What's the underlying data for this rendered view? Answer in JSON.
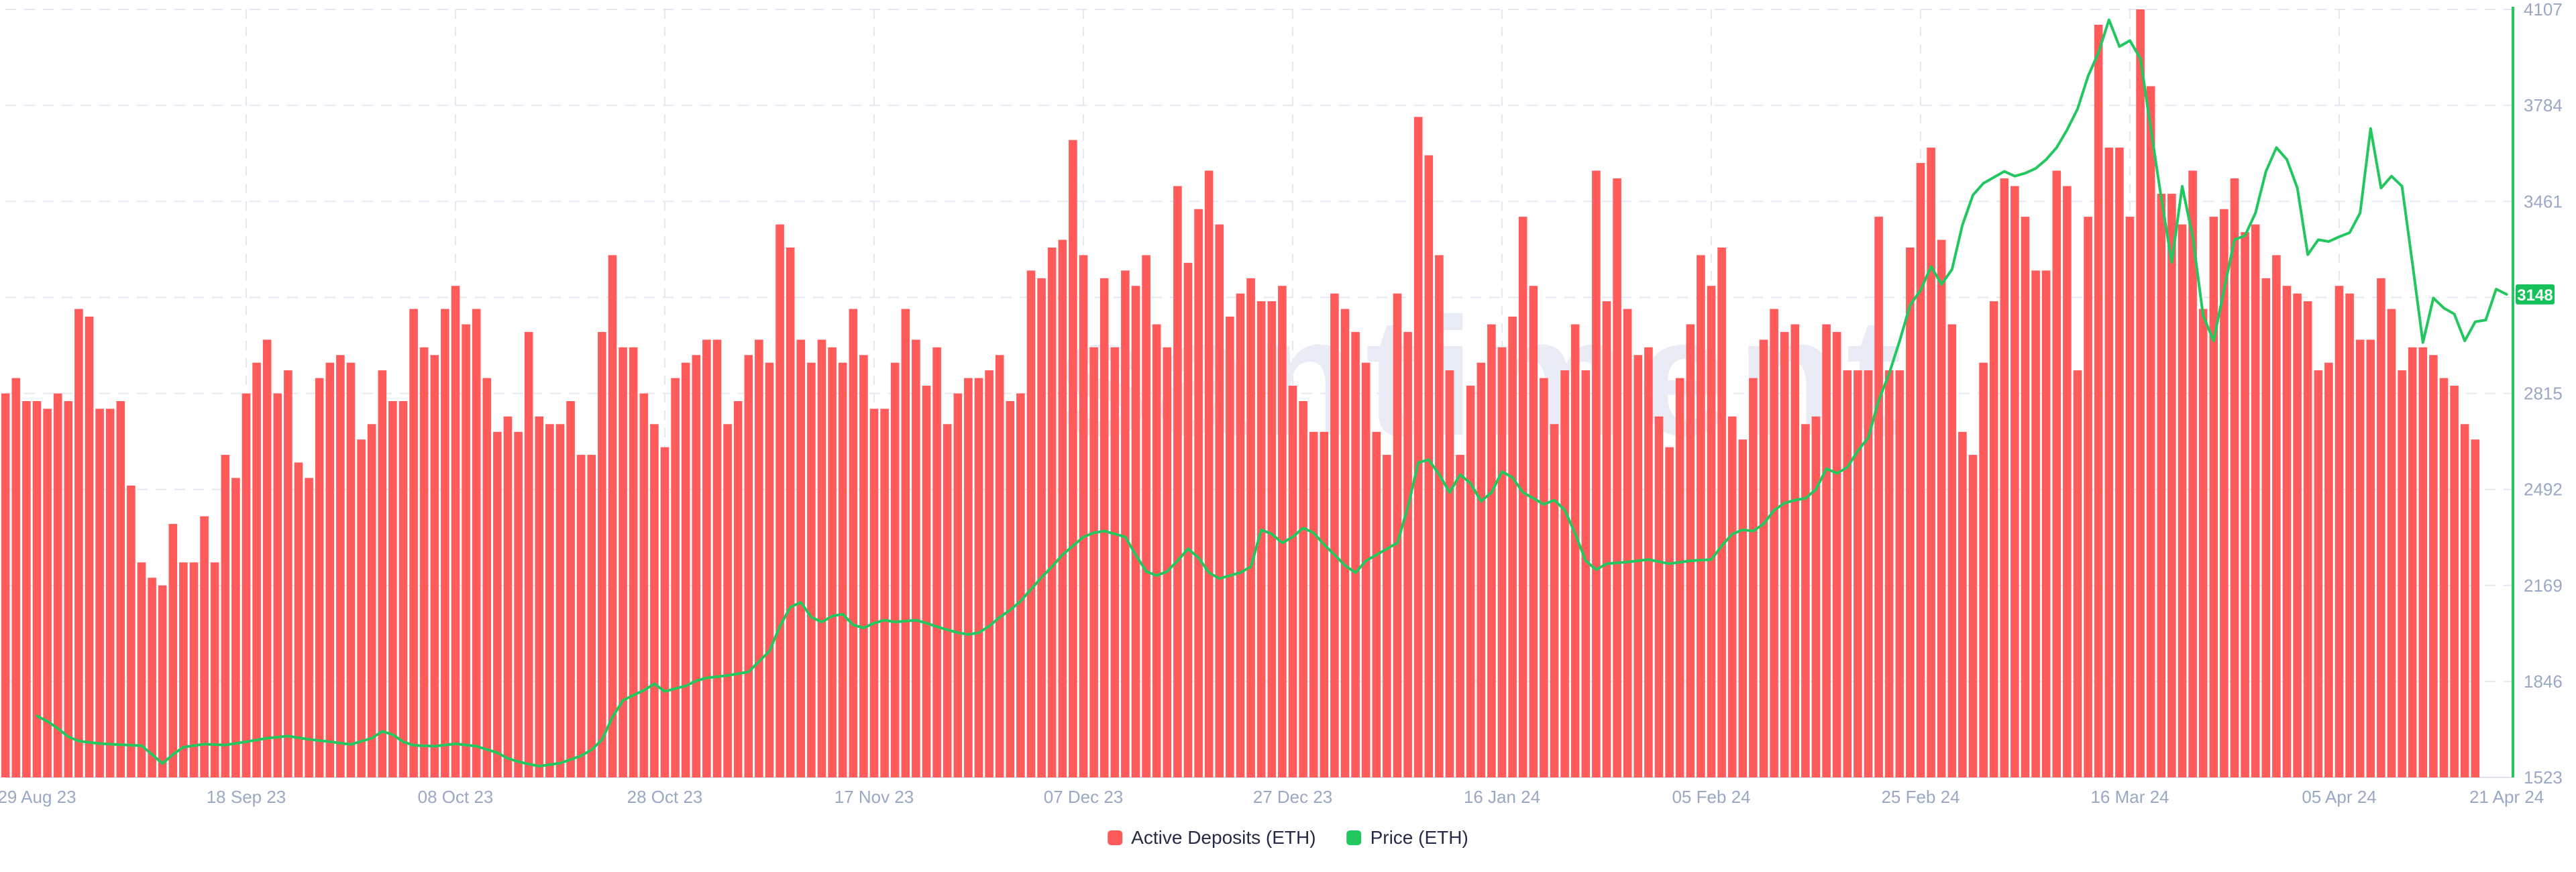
{
  "chart_data": {
    "type": "bar+line dual-axis time series",
    "watermark": "santiment",
    "x_axis": {
      "start_date": "29 Aug 23",
      "end_date": "21 Apr 24",
      "tick_labels": [
        "29 Aug 23",
        "18 Sep 23",
        "08 Oct 23",
        "28 Oct 23",
        "17 Nov 23",
        "07 Dec 23",
        "27 Dec 23",
        "16 Jan 24",
        "05 Feb 24",
        "25 Feb 24",
        "16 Mar 24",
        "05 Apr 24",
        "21 Apr 24"
      ],
      "tick_day_index": [
        0,
        20,
        40,
        60,
        80,
        100,
        120,
        140,
        160,
        180,
        200,
        220,
        236
      ]
    },
    "y_axis_price": {
      "side": "right",
      "min": 1523,
      "max": 4107,
      "ticks": [
        1523,
        1846,
        2169,
        2492,
        2815,
        3138,
        3461,
        3784,
        4107
      ],
      "hidden_tick": 3138,
      "last_price_badge": 3148
    },
    "y_axis_deposits": {
      "visible": false,
      "note": "bar axis not shown in chart; bar values are percent of plot height"
    },
    "grid": {
      "style": "dashed",
      "color": "#e5e8f2",
      "h_lines": [
        1846,
        2169,
        2492,
        2815,
        3138,
        3461,
        3784,
        4107
      ],
      "v_lines_day_index": [
        20,
        40,
        60,
        80,
        100,
        120,
        140,
        160,
        180,
        200,
        220
      ]
    },
    "series": [
      {
        "name": "Active Deposits (ETH)",
        "type": "bar",
        "color": "#ff5b5b",
        "unit": "% of plot height (source scale hidden)",
        "start_day_offset": -3,
        "values_pct": [
          50,
          52,
          49,
          49,
          48,
          50,
          49,
          61,
          60,
          48,
          48,
          49,
          38,
          28,
          26,
          25,
          33,
          28,
          28,
          34,
          28,
          42,
          39,
          50,
          54,
          57,
          50,
          53,
          41,
          39,
          52,
          54,
          55,
          54,
          44,
          46,
          53,
          49,
          49,
          61,
          56,
          55,
          61,
          64,
          59,
          61,
          52,
          45,
          47,
          45,
          58,
          47,
          46,
          46,
          49,
          42,
          42,
          58,
          68,
          56,
          56,
          50,
          46,
          43,
          52,
          54,
          55,
          57,
          57,
          46,
          49,
          55,
          57,
          54,
          72,
          69,
          57,
          54,
          57,
          56,
          54,
          61,
          55,
          48,
          48,
          54,
          61,
          57,
          51,
          56,
          46,
          50,
          52,
          52,
          53,
          55,
          49,
          50,
          66,
          65,
          69,
          70,
          83,
          68,
          56,
          65,
          56,
          66,
          64,
          68,
          59,
          56,
          77,
          67,
          74,
          79,
          72,
          60,
          63,
          65,
          62,
          62,
          64,
          51,
          49,
          45,
          45,
          63,
          61,
          58,
          54,
          45,
          42,
          63,
          58,
          86,
          81,
          68,
          53,
          42,
          51,
          54,
          59,
          56,
          60,
          73,
          64,
          52,
          46,
          53,
          59,
          53,
          79,
          62,
          78,
          61,
          55,
          56,
          47,
          43,
          52,
          59,
          68,
          64,
          69,
          47,
          44,
          52,
          57,
          61,
          58,
          59,
          46,
          47,
          59,
          58,
          53,
          53,
          53,
          73,
          53,
          53,
          69,
          80,
          82,
          70,
          59,
          45,
          42,
          54,
          62,
          78,
          77,
          73,
          66,
          66,
          79,
          77,
          53,
          73,
          98,
          82,
          82,
          73,
          100,
          90,
          76,
          76,
          72,
          79,
          61,
          73,
          74,
          78,
          71,
          72,
          65,
          68,
          64,
          63,
          62,
          53,
          54,
          64,
          63,
          57,
          57,
          65,
          61,
          53,
          56,
          56,
          55,
          52,
          51,
          46,
          44
        ]
      },
      {
        "name": "Price (ETH)",
        "type": "line",
        "color": "#22c75f",
        "points_day_price": [
          [
            0,
            1730
          ],
          [
            1,
            1712
          ],
          [
            2,
            1688
          ],
          [
            3,
            1660
          ],
          [
            4,
            1645
          ],
          [
            6,
            1637
          ],
          [
            8,
            1633
          ],
          [
            10,
            1630
          ],
          [
            11,
            1600
          ],
          [
            12,
            1570
          ],
          [
            13,
            1600
          ],
          [
            14,
            1625
          ],
          [
            16,
            1635
          ],
          [
            18,
            1632
          ],
          [
            20,
            1643
          ],
          [
            22,
            1655
          ],
          [
            24,
            1662
          ],
          [
            26,
            1651
          ],
          [
            28,
            1643
          ],
          [
            30,
            1634
          ],
          [
            32,
            1655
          ],
          [
            33,
            1678
          ],
          [
            34,
            1667
          ],
          [
            35,
            1643
          ],
          [
            36,
            1631
          ],
          [
            38,
            1628
          ],
          [
            40,
            1636
          ],
          [
            42,
            1628
          ],
          [
            44,
            1606
          ],
          [
            45,
            1587
          ],
          [
            46,
            1576
          ],
          [
            47,
            1568
          ],
          [
            48,
            1561
          ],
          [
            50,
            1571
          ],
          [
            52,
            1596
          ],
          [
            53,
            1616
          ],
          [
            54,
            1650
          ],
          [
            55,
            1726
          ],
          [
            56,
            1782
          ],
          [
            57,
            1800
          ],
          [
            58,
            1816
          ],
          [
            59,
            1838
          ],
          [
            60,
            1812
          ],
          [
            61,
            1822
          ],
          [
            62,
            1831
          ],
          [
            63,
            1848
          ],
          [
            64,
            1858
          ],
          [
            66,
            1866
          ],
          [
            68,
            1878
          ],
          [
            70,
            1948
          ],
          [
            71,
            2032
          ],
          [
            72,
            2096
          ],
          [
            73,
            2112
          ],
          [
            74,
            2062
          ],
          [
            75,
            2046
          ],
          [
            76,
            2066
          ],
          [
            77,
            2072
          ],
          [
            78,
            2036
          ],
          [
            79,
            2026
          ],
          [
            80,
            2042
          ],
          [
            81,
            2052
          ],
          [
            82,
            2046
          ],
          [
            84,
            2052
          ],
          [
            85,
            2042
          ],
          [
            86,
            2030
          ],
          [
            87,
            2020
          ],
          [
            88,
            2010
          ],
          [
            89,
            2004
          ],
          [
            90,
            2010
          ],
          [
            91,
            2032
          ],
          [
            92,
            2062
          ],
          [
            93,
            2086
          ],
          [
            94,
            2116
          ],
          [
            95,
            2156
          ],
          [
            96,
            2196
          ],
          [
            97,
            2232
          ],
          [
            98,
            2272
          ],
          [
            99,
            2302
          ],
          [
            100,
            2332
          ],
          [
            101,
            2346
          ],
          [
            102,
            2352
          ],
          [
            103,
            2342
          ],
          [
            104,
            2332
          ],
          [
            105,
            2272
          ],
          [
            106,
            2216
          ],
          [
            107,
            2202
          ],
          [
            108,
            2216
          ],
          [
            109,
            2252
          ],
          [
            110,
            2292
          ],
          [
            111,
            2262
          ],
          [
            112,
            2212
          ],
          [
            113,
            2192
          ],
          [
            114,
            2202
          ],
          [
            115,
            2212
          ],
          [
            116,
            2232
          ],
          [
            117,
            2356
          ],
          [
            118,
            2342
          ],
          [
            119,
            2312
          ],
          [
            120,
            2332
          ],
          [
            121,
            2362
          ],
          [
            122,
            2346
          ],
          [
            123,
            2306
          ],
          [
            124,
            2272
          ],
          [
            125,
            2236
          ],
          [
            126,
            2212
          ],
          [
            127,
            2252
          ],
          [
            128,
            2272
          ],
          [
            129,
            2292
          ],
          [
            130,
            2312
          ],
          [
            131,
            2432
          ],
          [
            132,
            2582
          ],
          [
            133,
            2592
          ],
          [
            134,
            2542
          ],
          [
            135,
            2482
          ],
          [
            136,
            2542
          ],
          [
            137,
            2512
          ],
          [
            138,
            2452
          ],
          [
            139,
            2482
          ],
          [
            140,
            2552
          ],
          [
            141,
            2532
          ],
          [
            142,
            2482
          ],
          [
            143,
            2462
          ],
          [
            144,
            2442
          ],
          [
            145,
            2456
          ],
          [
            146,
            2422
          ],
          [
            147,
            2342
          ],
          [
            148,
            2252
          ],
          [
            149,
            2222
          ],
          [
            150,
            2242
          ],
          [
            152,
            2248
          ],
          [
            154,
            2256
          ],
          [
            156,
            2242
          ],
          [
            158,
            2252
          ],
          [
            160,
            2256
          ],
          [
            161,
            2302
          ],
          [
            162,
            2342
          ],
          [
            163,
            2356
          ],
          [
            164,
            2352
          ],
          [
            165,
            2376
          ],
          [
            166,
            2422
          ],
          [
            167,
            2446
          ],
          [
            168,
            2456
          ],
          [
            169,
            2462
          ],
          [
            170,
            2492
          ],
          [
            171,
            2562
          ],
          [
            172,
            2546
          ],
          [
            173,
            2566
          ],
          [
            174,
            2622
          ],
          [
            175,
            2666
          ],
          [
            176,
            2792
          ],
          [
            177,
            2882
          ],
          [
            178,
            2992
          ],
          [
            179,
            3112
          ],
          [
            180,
            3162
          ],
          [
            181,
            3242
          ],
          [
            182,
            3182
          ],
          [
            183,
            3232
          ],
          [
            184,
            3382
          ],
          [
            185,
            3482
          ],
          [
            186,
            3522
          ],
          [
            187,
            3542
          ],
          [
            188,
            3562
          ],
          [
            189,
            3546
          ],
          [
            190,
            3556
          ],
          [
            191,
            3572
          ],
          [
            192,
            3602
          ],
          [
            193,
            3642
          ],
          [
            194,
            3702
          ],
          [
            195,
            3772
          ],
          [
            196,
            3882
          ],
          [
            197,
            3962
          ],
          [
            198,
            4072
          ],
          [
            199,
            3982
          ],
          [
            200,
            4002
          ],
          [
            201,
            3942
          ],
          [
            202,
            3706
          ],
          [
            203,
            3472
          ],
          [
            204,
            3256
          ],
          [
            205,
            3512
          ],
          [
            206,
            3342
          ],
          [
            207,
            3076
          ],
          [
            208,
            2992
          ],
          [
            209,
            3166
          ],
          [
            210,
            3332
          ],
          [
            211,
            3346
          ],
          [
            212,
            3422
          ],
          [
            213,
            3562
          ],
          [
            214,
            3642
          ],
          [
            215,
            3602
          ],
          [
            216,
            3506
          ],
          [
            217,
            3282
          ],
          [
            218,
            3332
          ],
          [
            219,
            3326
          ],
          [
            220,
            3342
          ],
          [
            221,
            3356
          ],
          [
            222,
            3422
          ],
          [
            223,
            3706
          ],
          [
            224,
            3506
          ],
          [
            225,
            3546
          ],
          [
            226,
            3512
          ],
          [
            227,
            3252
          ],
          [
            228,
            2986
          ],
          [
            229,
            3136
          ],
          [
            230,
            3102
          ],
          [
            231,
            3082
          ],
          [
            232,
            2992
          ],
          [
            233,
            3056
          ],
          [
            234,
            3062
          ],
          [
            235,
            3166
          ],
          [
            236,
            3148
          ]
        ]
      }
    ],
    "render": {
      "x0": 55,
      "day_w": 15.6,
      "base_y": 1159,
      "top_y": 14,
      "axis_x": 3746,
      "bar_w": 12.6,
      "p_min": 1523,
      "p_max": 4107,
      "plot_left": 8
    }
  },
  "legend": {
    "items": [
      {
        "label": "Active Deposits (ETH)",
        "color": "#ff5b5b"
      },
      {
        "label": "Price (ETH)",
        "color": "#22c75f"
      }
    ]
  },
  "colors": {
    "bar_red": "#ff5b5b",
    "line_green": "#22c75f",
    "badge_green": "#14c15b",
    "badge_text": "#ffffff",
    "axis_label": "#9aa8c6",
    "legend_text": "#252b47",
    "gridline": "#e5e8f2",
    "baseline": "#dfe3ee",
    "watermark": "#e9ecf5",
    "background": "#ffffff"
  }
}
